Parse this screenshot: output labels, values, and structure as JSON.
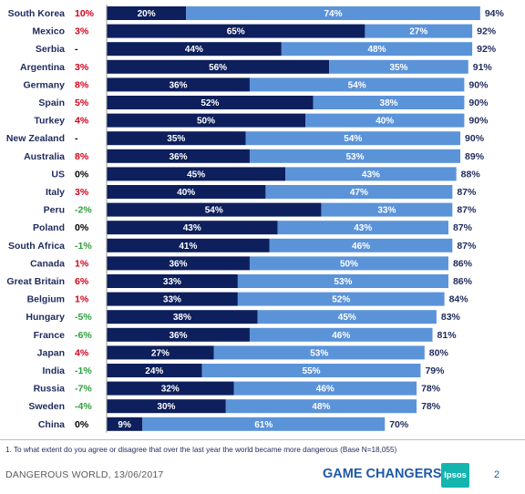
{
  "chart_data": {
    "type": "bar",
    "stacked": true,
    "orientation": "horizontal",
    "categories": [
      "South Korea",
      "Mexico",
      "Serbia",
      "Argentina",
      "Germany",
      "Spain",
      "Turkey",
      "New Zealand",
      "Australia",
      "US",
      "Italy",
      "Peru",
      "Poland",
      "South Africa",
      "Canada",
      "Great Britain",
      "Belgium",
      "Hungary",
      "France",
      "Japan",
      "India",
      "Russia",
      "Sweden",
      "China"
    ],
    "change": [
      "10%",
      "3%",
      "-",
      "3%",
      "8%",
      "5%",
      "4%",
      "-",
      "8%",
      "0%",
      "3%",
      "-2%",
      "0%",
      "-1%",
      "1%",
      "6%",
      "1%",
      "-5%",
      "-6%",
      "4%",
      "-1%",
      "-7%",
      "-4%",
      "0%"
    ],
    "series": [
      {
        "values": [
          20,
          65,
          44,
          56,
          36,
          52,
          50,
          35,
          36,
          45,
          40,
          54,
          43,
          41,
          36,
          33,
          33,
          38,
          36,
          27,
          24,
          32,
          30,
          9
        ]
      },
      {
        "values": [
          74,
          27,
          48,
          35,
          54,
          38,
          40,
          54,
          53,
          43,
          47,
          33,
          43,
          46,
          50,
          53,
          52,
          45,
          46,
          53,
          55,
          46,
          48,
          61
        ]
      }
    ],
    "totals": [
      94,
      92,
      92,
      91,
      90,
      90,
      90,
      90,
      89,
      88,
      87,
      87,
      87,
      87,
      86,
      86,
      84,
      83,
      81,
      80,
      79,
      78,
      78,
      70
    ],
    "value_suffix": "%",
    "xlim": [
      0,
      100
    ],
    "colors": {
      "series1": "#0d1f5c",
      "series2": "#5b93d9",
      "change_positive": "#d0021b",
      "change_negative": "#2e9e3b",
      "change_neutral": "#000000"
    }
  },
  "footnote": "1. To what extent do you agree or disagree that over the last year the world became more dangerous (Base N=18,055)",
  "footer": {
    "left": "DANGEROUS WORLD, 13/06/2017",
    "brand": "GAME CHANGERS",
    "logo": "Ipsos",
    "page": "2"
  }
}
